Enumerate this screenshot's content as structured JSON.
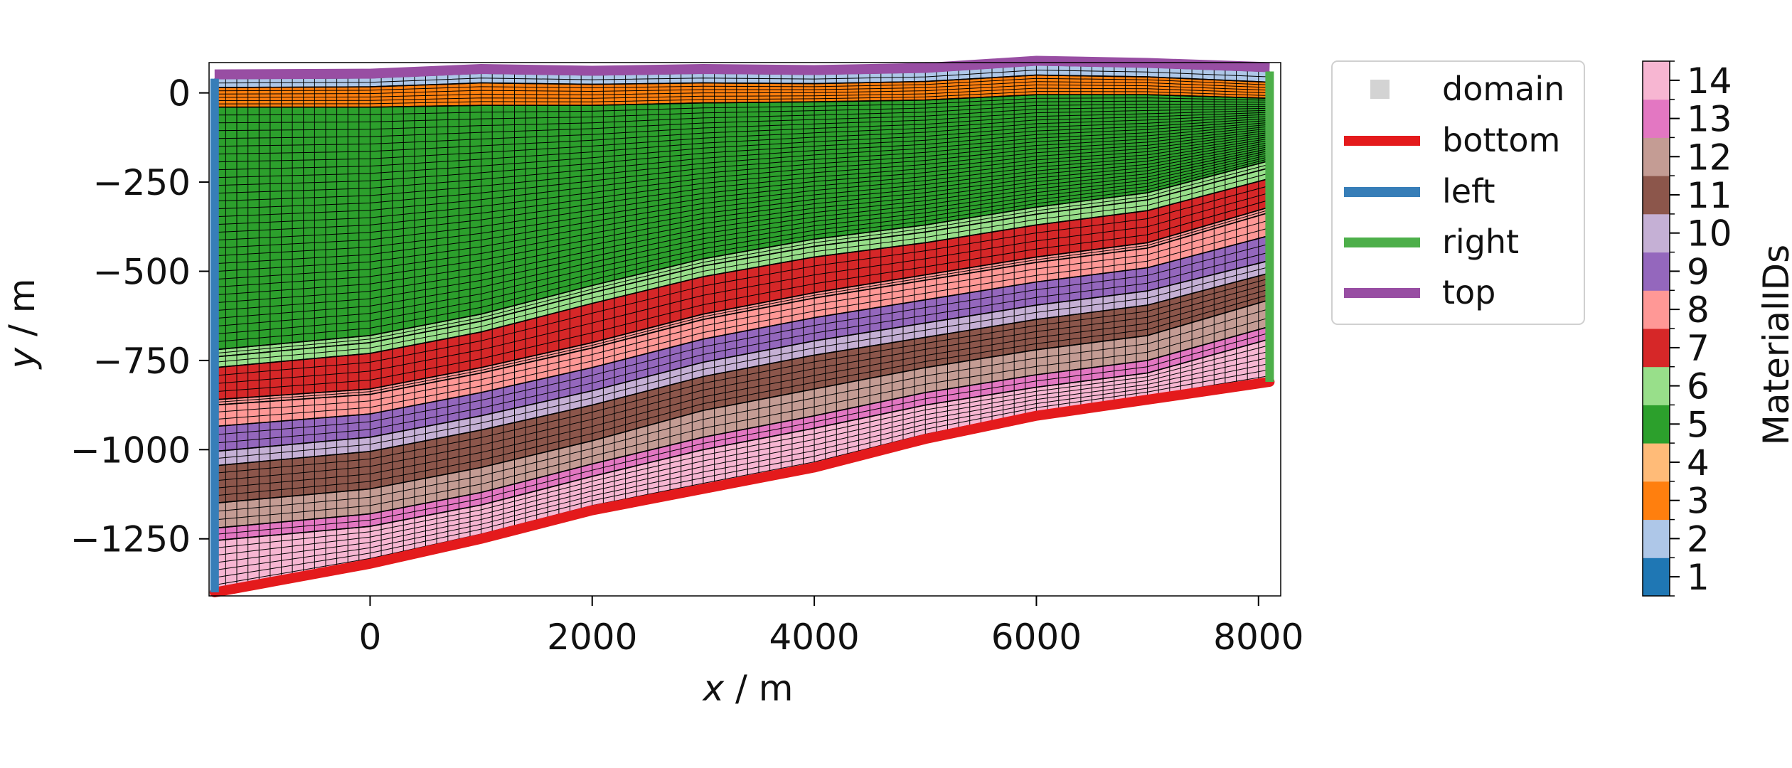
{
  "chart_data": {
    "type": "area",
    "xlabel_var": "x",
    "xlabel_unit": " / m",
    "ylabel_var": "y",
    "ylabel_unit": " / m",
    "xlim": [
      -1450,
      8200
    ],
    "ylim": [
      -1410,
      85
    ],
    "xticks": [
      0,
      2000,
      4000,
      6000,
      8000
    ],
    "yticks": [
      0,
      -250,
      -500,
      -750,
      -1000,
      -1250
    ],
    "xtick_labels": [
      "0",
      "2000",
      "4000",
      "6000",
      "8000"
    ],
    "ytick_labels": [
      "0",
      "−250",
      "−500",
      "−750",
      "−1000",
      "−1250"
    ],
    "interface_x": [
      -1400,
      0,
      1000,
      2000,
      3000,
      4000,
      5000,
      6000,
      7000,
      8100
    ],
    "interfaces": [
      {
        "y": [
          40,
          42,
          55,
          50,
          55,
          52,
          58,
          78,
          72,
          60
        ]
      },
      {
        "y": [
          15,
          17,
          28,
          24,
          28,
          26,
          32,
          50,
          45,
          30
        ]
      },
      {
        "y": [
          -40,
          -40,
          -35,
          -35,
          -28,
          -25,
          -20,
          -5,
          -5,
          -15
        ]
      },
      {
        "y": [
          -720,
          -680,
          -620,
          -540,
          -465,
          -410,
          -370,
          -320,
          -280,
          -190
        ]
      },
      {
        "y": [
          -740,
          -700,
          -640,
          -560,
          -485,
          -430,
          -390,
          -340,
          -300,
          -210
        ]
      },
      {
        "y": [
          -770,
          -730,
          -670,
          -590,
          -515,
          -460,
          -420,
          -370,
          -330,
          -240
        ]
      },
      {
        "y": [
          -860,
          -830,
          -770,
          -700,
          -620,
          -560,
          -510,
          -460,
          -420,
          -320
        ]
      },
      {
        "y": [
          -875,
          -845,
          -785,
          -715,
          -635,
          -575,
          -525,
          -475,
          -435,
          -335
        ]
      },
      {
        "y": [
          -935,
          -900,
          -840,
          -770,
          -690,
          -630,
          -580,
          -530,
          -490,
          -400
        ]
      },
      {
        "y": [
          -1005,
          -965,
          -905,
          -835,
          -755,
          -695,
          -645,
          -595,
          -555,
          -470
        ]
      },
      {
        "y": [
          -1045,
          -1005,
          -945,
          -875,
          -795,
          -735,
          -685,
          -635,
          -595,
          -505
        ]
      },
      {
        "y": [
          -1150,
          -1110,
          -1050,
          -975,
          -890,
          -830,
          -770,
          -720,
          -680,
          -580
        ]
      },
      {
        "y": [
          -1220,
          -1180,
          -1120,
          -1040,
          -965,
          -905,
          -840,
          -790,
          -750,
          -655
        ]
      },
      {
        "y": [
          -1255,
          -1215,
          -1155,
          -1075,
          -1000,
          -940,
          -875,
          -825,
          -785,
          -690
        ]
      },
      {
        "y": [
          -1400,
          -1320,
          -1250,
          -1170,
          -1110,
          -1050,
          -970,
          -905,
          -860,
          -810
        ]
      }
    ],
    "layer_material_ids": [
      2,
      3,
      5,
      6,
      6,
      7,
      8,
      8,
      9,
      10,
      11,
      12,
      13,
      14
    ],
    "boundaries": [
      {
        "name": "bottom",
        "color": "#e41a1c"
      },
      {
        "name": "left",
        "color": "#377eb8"
      },
      {
        "name": "right",
        "color": "#4daf4a"
      },
      {
        "name": "top",
        "color": "#984ea3"
      }
    ],
    "legend": {
      "placement": "outside right",
      "entries": [
        "domain",
        "bottom",
        "left",
        "right",
        "top"
      ],
      "domain_color": "#d3d3d3"
    },
    "colorbar": {
      "label": "MaterialIDs",
      "ticks": [
        "1",
        "2",
        "3",
        "4",
        "5",
        "6",
        "7",
        "8",
        "9",
        "10",
        "11",
        "12",
        "13",
        "14"
      ],
      "colors": [
        "#1f77b4",
        "#aec7e8",
        "#ff7f0e",
        "#ffbb78",
        "#2ca02c",
        "#98df8a",
        "#d62728",
        "#ff9896",
        "#9467bd",
        "#c5b0d5",
        "#8c564b",
        "#c49c94",
        "#e377c2",
        "#f7b6d2"
      ]
    }
  }
}
